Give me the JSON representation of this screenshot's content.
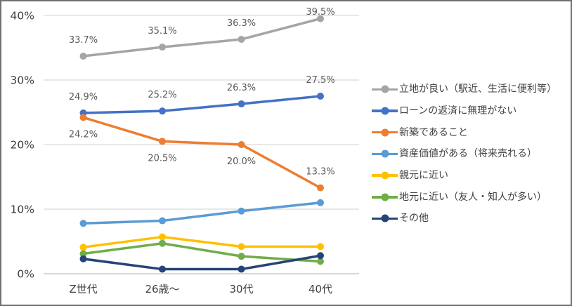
{
  "chart_data": {
    "type": "line",
    "title": "",
    "categories": [
      "Z世代",
      "26歳～",
      "30代",
      "40代"
    ],
    "y_axis": {
      "min": 0,
      "max": 40,
      "tick_step": 10,
      "tick_labels": [
        "0%",
        "10%",
        "20%",
        "30%",
        "40%"
      ],
      "unit": "%"
    },
    "grid": true,
    "legend_position": "right",
    "series": [
      {
        "name": "立地が良い（駅近、生活に便利等）",
        "color": "#A5A5A5",
        "values": [
          33.7,
          35.1,
          36.3,
          39.5
        ],
        "data_labels": [
          "33.7%",
          "35.1%",
          "36.3%",
          "39.5%"
        ],
        "label_side": [
          "above",
          "above",
          "above",
          "above"
        ]
      },
      {
        "name": "ローンの返済に無理がない",
        "color": "#4472C4",
        "values": [
          24.9,
          25.2,
          26.3,
          27.5
        ],
        "data_labels": [
          "24.9%",
          "25.2%",
          "26.3%",
          "27.5%"
        ],
        "label_side": [
          "above",
          "above",
          "above",
          "above"
        ]
      },
      {
        "name": "新築であること",
        "color": "#ED7D31",
        "values": [
          24.2,
          20.5,
          20.0,
          13.3
        ],
        "data_labels": [
          "24.2%",
          "20.5%",
          "20.0%",
          "13.3%"
        ],
        "label_side": [
          "below",
          "below",
          "below",
          "above"
        ]
      },
      {
        "name": "資産価値がある（将来売れる）",
        "color": "#5B9BD5",
        "values": [
          7.8,
          8.2,
          9.7,
          11.0
        ],
        "data_labels": null
      },
      {
        "name": "親元に近い",
        "color": "#FFC000",
        "values": [
          4.1,
          5.7,
          4.2,
          4.2
        ],
        "data_labels": null
      },
      {
        "name": "地元に近い（友人・知人が多い）",
        "color": "#70AD47",
        "values": [
          3.1,
          4.7,
          2.7,
          1.9
        ],
        "data_labels": null
      },
      {
        "name": "その他",
        "color": "#264478",
        "values": [
          2.3,
          0.7,
          0.7,
          2.8
        ],
        "data_labels": null
      }
    ],
    "style": {
      "axis_text_color": "#404040",
      "data_label_color": "#595959",
      "gridline_color": "#D9D9D9",
      "axis_line_color": "#BFBFBF"
    }
  }
}
